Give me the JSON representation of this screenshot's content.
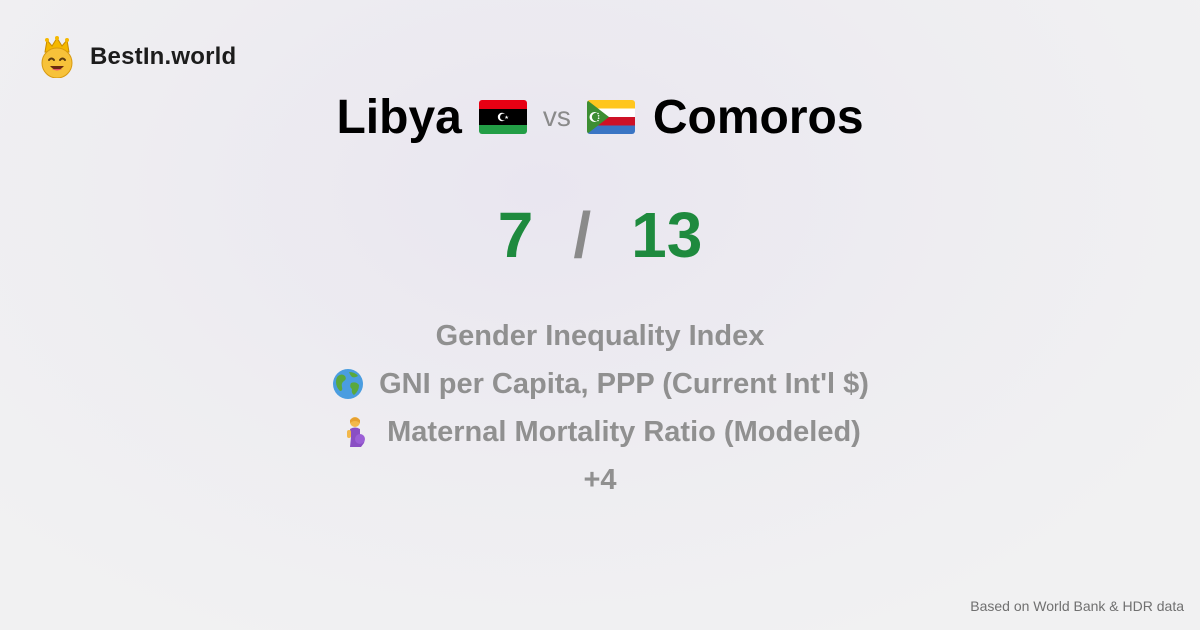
{
  "brand": {
    "name": "BestIn.world",
    "icon": "crown-smile-icon"
  },
  "comparison": {
    "left": {
      "name": "Libya",
      "flag": "libya-flag-icon"
    },
    "vs_label": "vs",
    "right": {
      "name": "Comoros",
      "flag": "comoros-flag-icon"
    }
  },
  "score": {
    "left": "7",
    "separator": "/",
    "right": "13"
  },
  "metrics": [
    {
      "label": "Gender Inequality Index",
      "icon": ""
    },
    {
      "label": "GNI per Capita, PPP (Current Int'l $)",
      "icon": "globe-icon"
    },
    {
      "label": "Maternal Mortality Ratio (Modeled)",
      "icon": "pregnant-woman-icon"
    }
  ],
  "more_label": "+4",
  "footer": {
    "text": "Based on World Bank & HDR data"
  },
  "colors": {
    "score": "#1e8a3e",
    "muted": "#909090"
  }
}
